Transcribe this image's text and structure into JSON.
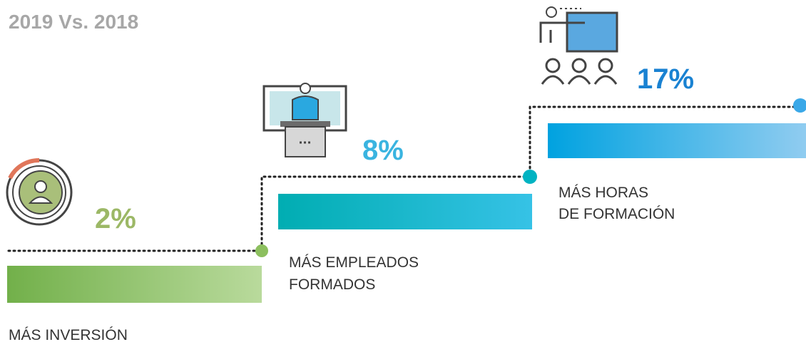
{
  "title": "2019 Vs. 2018",
  "steps": [
    {
      "value": "2%",
      "label": [
        "MÁS INVERSIÓN"
      ]
    },
    {
      "value": "8%",
      "label": [
        "MÁS EMPLEADOS",
        "FORMADOS"
      ]
    },
    {
      "value": "17%",
      "label": [
        "MÁS HORAS",
        "DE FORMACIÓN"
      ]
    }
  ]
}
